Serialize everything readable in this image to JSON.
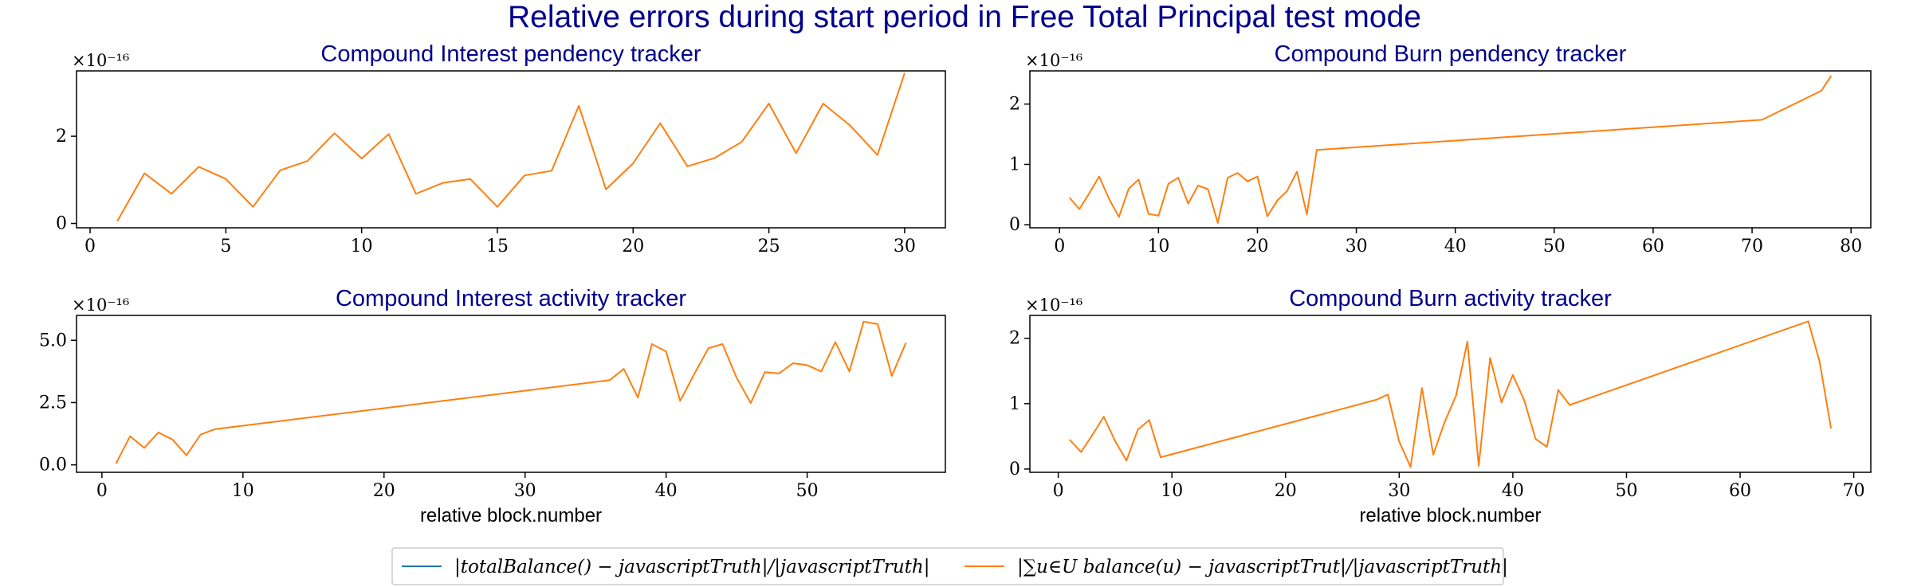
{
  "suptitle": "Relative errors during start period in Free Total Principal test mode",
  "legend": {
    "items": [
      {
        "label": "|totalBalance() − javascriptTruth|/|javascriptTruth|",
        "color": "#1f77b4"
      },
      {
        "label": "|∑u∈U balance(u) − javascriptTrut|/|javascriptTruth|",
        "color": "#ff7f0e"
      }
    ]
  },
  "chart_data": [
    {
      "type": "line",
      "title": "Compound Interest pendency tracker",
      "xlabel": "",
      "multiplier": "×10⁻¹⁶",
      "xlim": [
        -0.5,
        31.5
      ],
      "ylim": [
        -0.1,
        3.5
      ],
      "xticks": [
        0,
        5,
        10,
        15,
        20,
        25,
        30
      ],
      "yticks": [
        0,
        2
      ],
      "ytick_labels": [
        "0",
        "2"
      ],
      "series": [
        {
          "color": "#ff7f0e",
          "x": [
            1,
            2,
            3,
            4,
            5,
            6,
            7,
            8,
            9,
            10,
            11,
            12,
            13,
            14,
            15,
            16,
            17,
            18,
            19,
            20,
            21,
            22,
            23,
            24,
            25,
            26,
            27,
            28,
            29,
            30
          ],
          "y": [
            0.05,
            1.15,
            0.68,
            1.3,
            1.02,
            0.38,
            1.22,
            1.43,
            2.07,
            1.49,
            2.05,
            0.68,
            0.93,
            1.02,
            0.38,
            1.1,
            1.21,
            2.7,
            0.78,
            1.38,
            2.3,
            1.31,
            1.5,
            1.87,
            2.75,
            1.61,
            2.75,
            2.24,
            1.57,
            3.45
          ]
        }
      ]
    },
    {
      "type": "line",
      "title": "Compound Burn pendency tracker",
      "xlabel": "",
      "multiplier": "×10⁻¹⁶",
      "xlim": [
        -3,
        82
      ],
      "ylim": [
        -0.05,
        2.55
      ],
      "xticks": [
        0,
        10,
        20,
        30,
        40,
        50,
        60,
        70,
        80
      ],
      "yticks": [
        0,
        1,
        2
      ],
      "ytick_labels": [
        "0",
        "1",
        "2"
      ],
      "series": [
        {
          "color": "#ff7f0e",
          "x": [
            1,
            2,
            3,
            4,
            5,
            6,
            7,
            8,
            9,
            10,
            11,
            12,
            13,
            14,
            15,
            16,
            17,
            18,
            19,
            20,
            21,
            22,
            23,
            24,
            25,
            26,
            71,
            77,
            78
          ],
          "y": [
            0.45,
            0.26,
            0.52,
            0.8,
            0.43,
            0.13,
            0.6,
            0.75,
            0.18,
            0.15,
            0.68,
            0.78,
            0.35,
            0.65,
            0.59,
            0.03,
            0.78,
            0.86,
            0.72,
            0.8,
            0.14,
            0.4,
            0.56,
            0.88,
            0.17,
            1.24,
            1.74,
            2.22,
            2.47
          ]
        }
      ]
    },
    {
      "type": "line",
      "title": "Compound Interest activity tracker",
      "xlabel": "relative block.number",
      "multiplier": "×10⁻¹⁶",
      "xlim": [
        -1.8,
        59.8
      ],
      "ylim": [
        -0.3,
        6.0
      ],
      "xticks": [
        0,
        10,
        20,
        30,
        40,
        50
      ],
      "yticks": [
        0,
        2.5,
        5
      ],
      "ytick_labels": [
        "0.0",
        "2.5",
        "5.0"
      ],
      "series": [
        {
          "color": "#ff7f0e",
          "x": [
            1,
            2,
            3,
            4,
            5,
            6,
            7,
            8,
            36,
            37,
            38,
            39,
            40,
            41,
            42,
            43,
            44,
            45,
            46,
            47,
            48,
            49,
            50,
            51,
            52,
            53,
            54,
            55,
            56,
            57
          ],
          "y": [
            0.05,
            1.15,
            0.68,
            1.3,
            1.02,
            0.38,
            1.22,
            1.43,
            3.4,
            3.85,
            2.7,
            4.85,
            4.55,
            2.57,
            3.65,
            4.68,
            4.85,
            3.5,
            2.48,
            3.72,
            3.67,
            4.08,
            4.0,
            3.75,
            4.93,
            3.75,
            5.75,
            5.65,
            3.57,
            4.9
          ]
        }
      ]
    },
    {
      "type": "line",
      "title": "Compound Burn activity tracker",
      "xlabel": "relative block.number",
      "multiplier": "×10⁻¹⁶",
      "xlim": [
        -2.5,
        71.5
      ],
      "ylim": [
        -0.05,
        2.35
      ],
      "xticks": [
        0,
        10,
        20,
        30,
        40,
        50,
        60,
        70
      ],
      "yticks": [
        0,
        1,
        2
      ],
      "ytick_labels": [
        "0",
        "1",
        "2"
      ],
      "series": [
        {
          "color": "#ff7f0e",
          "x": [
            1,
            2,
            3,
            4,
            5,
            6,
            7,
            8,
            9,
            28,
            29,
            30,
            31,
            32,
            33,
            34,
            35,
            36,
            37,
            38,
            39,
            40,
            41,
            42,
            43,
            44,
            45,
            66,
            67,
            68
          ],
          "y": [
            0.45,
            0.26,
            0.52,
            0.8,
            0.43,
            0.13,
            0.6,
            0.75,
            0.18,
            1.06,
            1.14,
            0.42,
            0.03,
            1.24,
            0.22,
            0.72,
            1.12,
            1.95,
            0.05,
            1.7,
            1.02,
            1.44,
            1.05,
            0.46,
            0.34,
            1.21,
            0.98,
            2.26,
            1.64,
            0.62
          ]
        }
      ]
    }
  ]
}
